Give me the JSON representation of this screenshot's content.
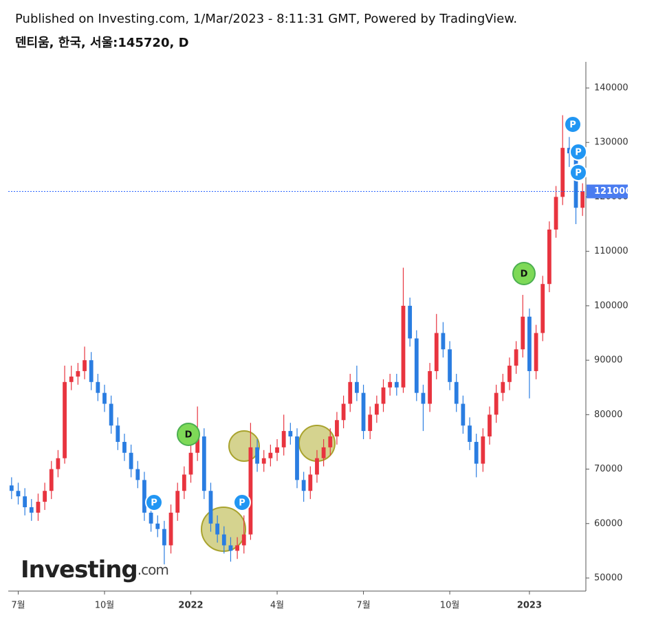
{
  "chart_data": {
    "type": "candlestick",
    "header": "Published on Investing.com, 1/Mar/2023 - 8:11:31 GMT, Powered by TradingView.",
    "title": "덴티움, 한국, 서울:145720, D",
    "watermark": "Investing",
    "watermark_suffix": ".com",
    "up_color": "#e8343f",
    "down_color": "#2a7de1",
    "categories": [
      null,
      "7월",
      null,
      null,
      null,
      null,
      null,
      null,
      null,
      null,
      null,
      null,
      null,
      null,
      "10월",
      null,
      null,
      null,
      null,
      null,
      null,
      null,
      null,
      null,
      null,
      null,
      null,
      "2022",
      null,
      null,
      null,
      null,
      null,
      null,
      null,
      null,
      null,
      null,
      null,
      null,
      "4월",
      null,
      null,
      null,
      null,
      null,
      null,
      null,
      null,
      null,
      null,
      null,
      null,
      "7월",
      null,
      null,
      null,
      null,
      null,
      null,
      null,
      null,
      null,
      null,
      null,
      null,
      "10월",
      null,
      null,
      null,
      null,
      null,
      null,
      null,
      null,
      null,
      null,
      null,
      "2023",
      null,
      null,
      null,
      null,
      null,
      null,
      null,
      null
    ],
    "open": [
      67000,
      66000,
      65000,
      63000,
      62000,
      64000,
      66000,
      70000,
      72000,
      86000,
      87000,
      88000,
      90000,
      86000,
      84000,
      82000,
      78000,
      75000,
      73000,
      70000,
      68000,
      62000,
      60000,
      59000,
      56000,
      62000,
      66000,
      69000,
      73000,
      76000,
      66000,
      60000,
      58000,
      56000,
      55000,
      56000,
      58000,
      74000,
      71000,
      72000,
      73000,
      74000,
      77000,
      76000,
      68000,
      66000,
      69000,
      72000,
      74000,
      76000,
      79000,
      82000,
      86000,
      84000,
      77000,
      80000,
      82000,
      85000,
      86000,
      85000,
      100000,
      94000,
      84000,
      82000,
      88000,
      95000,
      92000,
      86000,
      82000,
      78000,
      75000,
      71000,
      76000,
      80000,
      84000,
      86000,
      89000,
      92000,
      98000,
      88000,
      95000,
      104000,
      114000,
      120000,
      129000,
      128000,
      118000
    ],
    "high": [
      68500,
      67500,
      66500,
      64500,
      65500,
      67500,
      71500,
      73500,
      89000,
      89000,
      89500,
      92500,
      91500,
      87500,
      85500,
      83500,
      79500,
      76500,
      74500,
      71500,
      69500,
      63500,
      61500,
      60500,
      63500,
      67500,
      70500,
      74500,
      81500,
      77500,
      67500,
      61500,
      59500,
      57500,
      57500,
      61500,
      78500,
      75500,
      73500,
      74500,
      75500,
      80000,
      78500,
      77500,
      69500,
      70500,
      73500,
      75500,
      77500,
      80500,
      83500,
      87500,
      89000,
      85500,
      81500,
      83500,
      86500,
      87500,
      87500,
      107000,
      101500,
      95500,
      85500,
      89500,
      98500,
      97000,
      93500,
      87500,
      83500,
      79500,
      76500,
      77500,
      81500,
      85500,
      87500,
      90500,
      93500,
      102000,
      99500,
      96500,
      105500,
      115500,
      122000,
      135000,
      131000,
      129500,
      122500
    ],
    "low": [
      64500,
      63500,
      61500,
      60500,
      60500,
      62500,
      64500,
      68500,
      71000,
      84500,
      85500,
      86500,
      84500,
      82500,
      80500,
      76500,
      73500,
      71500,
      68500,
      66500,
      60500,
      58500,
      57500,
      52500,
      54500,
      60500,
      64500,
      67500,
      71500,
      64500,
      58500,
      56500,
      54500,
      53000,
      53500,
      54500,
      57000,
      69500,
      69500,
      70500,
      71500,
      72500,
      74500,
      66500,
      64000,
      64500,
      67500,
      70500,
      72500,
      74500,
      77500,
      80500,
      82500,
      75500,
      75500,
      78500,
      80500,
      83500,
      83500,
      84000,
      92500,
      82500,
      77000,
      80500,
      86500,
      90500,
      84500,
      80500,
      76500,
      73500,
      68500,
      69500,
      74500,
      78500,
      82500,
      84500,
      87500,
      90500,
      83000,
      86500,
      93500,
      102500,
      112500,
      118500,
      125500,
      115000,
      116500
    ],
    "close": [
      66000,
      65000,
      63000,
      62000,
      64000,
      66000,
      70000,
      72000,
      86000,
      87000,
      88000,
      90000,
      86000,
      84000,
      82000,
      78000,
      75000,
      73000,
      70000,
      68000,
      62000,
      60000,
      59000,
      56000,
      62000,
      66000,
      69000,
      73000,
      76000,
      66000,
      60000,
      58000,
      56000,
      55000,
      56000,
      58000,
      74000,
      71000,
      72000,
      73000,
      74000,
      77000,
      76000,
      68000,
      66000,
      69000,
      72000,
      74000,
      76000,
      79000,
      82000,
      86000,
      84000,
      77000,
      80000,
      82000,
      85000,
      86000,
      85000,
      100000,
      94000,
      84000,
      82000,
      88000,
      95000,
      92000,
      86000,
      82000,
      78000,
      75000,
      71000,
      76000,
      80000,
      84000,
      86000,
      89000,
      92000,
      98000,
      88000,
      95000,
      104000,
      114000,
      120000,
      129000,
      128000,
      118000,
      121000
    ],
    "last_price": 121000,
    "markers": [
      "P",
      "P",
      "P",
      "P",
      "P",
      "D",
      "D"
    ],
    "ylim": [
      47600,
      144800
    ],
    "yticks": [
      50000,
      60000,
      70000,
      80000,
      90000,
      100000,
      110000,
      120000,
      130000,
      140000
    ]
  }
}
